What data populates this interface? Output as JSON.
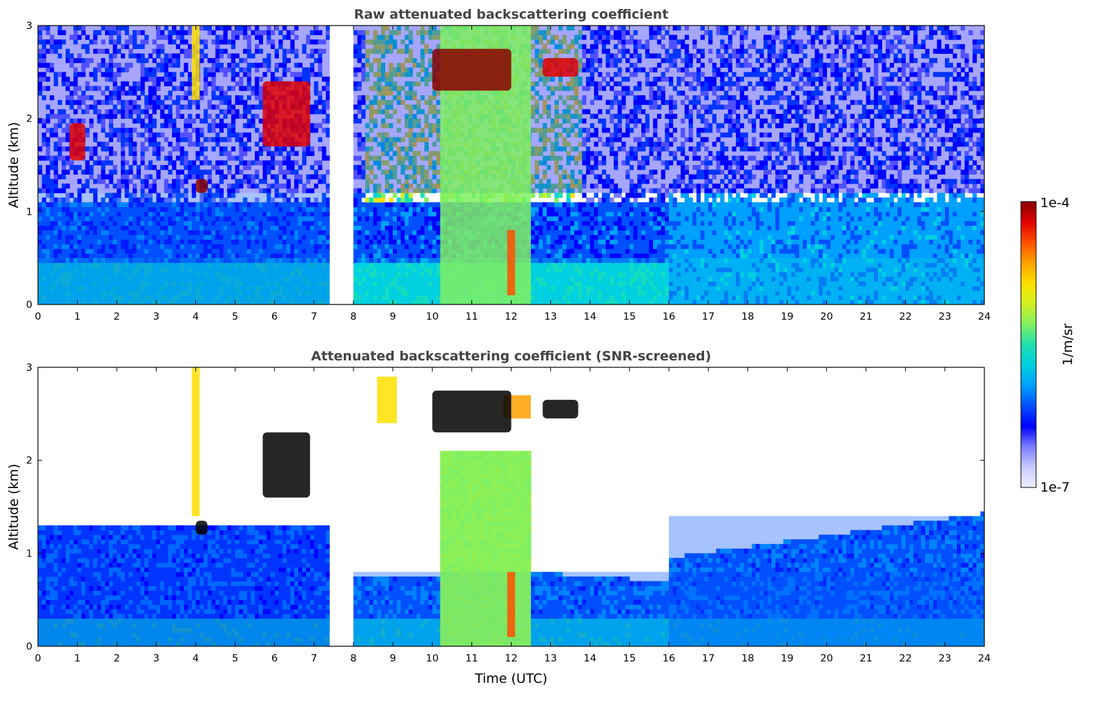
{
  "chart_data": [
    {
      "type": "heatmap",
      "title": "Raw attenuated backscattering coefficient",
      "xlabel": "",
      "ylabel": "Altitude (km)",
      "xlim": [
        0,
        24
      ],
      "ylim": [
        0,
        3
      ],
      "x_ticks": [
        "0",
        "1",
        "2",
        "3",
        "4",
        "5",
        "6",
        "7",
        "8",
        "9",
        "10",
        "11",
        "12",
        "13",
        "14",
        "15",
        "16",
        "17",
        "18",
        "19",
        "20",
        "21",
        "22",
        "23",
        "24"
      ],
      "y_ticks": [
        "0",
        "1",
        "2",
        "3"
      ],
      "data_gap_hours": [
        7.4,
        8.0
      ],
      "scale": "log",
      "regions": [
        {
          "kind": "surface_layer",
          "x": [
            0,
            24
          ],
          "y": [
            0,
            0.5
          ],
          "level": 0.45
        },
        {
          "kind": "boundary_layer",
          "x": [
            0,
            7.4
          ],
          "y": [
            0,
            1.2
          ],
          "level": 0.3
        },
        {
          "kind": "noise_high_altitude",
          "x": [
            0,
            24
          ],
          "y": [
            1.2,
            3
          ],
          "level": 0.2
        },
        {
          "kind": "aerosol_column",
          "x": [
            10.2,
            12.5
          ],
          "y": [
            0,
            3
          ],
          "level": 0.6
        },
        {
          "kind": "cloud_layer",
          "x": [
            10.0,
            12.0
          ],
          "y": [
            2.3,
            2.75
          ],
          "level": 1.0
        },
        {
          "kind": "cloud_layer",
          "x": [
            12.8,
            13.7
          ],
          "y": [
            2.45,
            2.65
          ],
          "level": 0.95
        },
        {
          "kind": "cloud_layer",
          "x": [
            0.8,
            1.2
          ],
          "y": [
            1.55,
            1.95
          ],
          "level": 0.95
        },
        {
          "kind": "cloud_layer",
          "x": [
            4.0,
            4.3
          ],
          "y": [
            1.2,
            1.35
          ],
          "level": 1.0
        },
        {
          "kind": "cloud_layer",
          "x": [
            5.7,
            6.9
          ],
          "y": [
            1.7,
            2.4
          ],
          "level": 0.95
        },
        {
          "kind": "plume",
          "x": [
            3.9,
            4.1
          ],
          "y": [
            2.2,
            3.0
          ],
          "level": 0.7
        },
        {
          "kind": "strong_return",
          "x": [
            11.9,
            12.1
          ],
          "y": [
            0.1,
            0.8
          ],
          "level": 0.85
        }
      ]
    },
    {
      "type": "heatmap",
      "title": "Attenuated backscattering coefficient (SNR-screened)",
      "xlabel": "Time (UTC)",
      "ylabel": "Altitude (km)",
      "xlim": [
        0,
        24
      ],
      "ylim": [
        0,
        3
      ],
      "x_ticks": [
        "0",
        "1",
        "2",
        "3",
        "4",
        "5",
        "6",
        "7",
        "8",
        "9",
        "10",
        "11",
        "12",
        "13",
        "14",
        "15",
        "16",
        "17",
        "18",
        "19",
        "20",
        "21",
        "22",
        "23",
        "24"
      ],
      "y_ticks": [
        "0",
        "1",
        "2",
        "3"
      ],
      "data_gap_hours": [
        7.4,
        8.0
      ],
      "scale": "log",
      "regions": [
        {
          "kind": "boundary_layer",
          "x": [
            0,
            7.4
          ],
          "y": [
            0,
            1.3
          ],
          "level": 0.25
        },
        {
          "kind": "boundary_layer",
          "x": [
            8.0,
            24
          ],
          "y": [
            0,
            0.8
          ],
          "level": 0.3
        },
        {
          "kind": "boundary_layer",
          "x": [
            16,
            24
          ],
          "y": [
            0,
            1.4
          ],
          "level": 0.3
        },
        {
          "kind": "aerosol_column",
          "x": [
            10.2,
            12.5
          ],
          "y": [
            0,
            2.1
          ],
          "level": 0.6
        },
        {
          "kind": "aerosol_layer",
          "x": [
            8.6,
            9.1
          ],
          "y": [
            2.4,
            2.9
          ],
          "level": 0.75
        },
        {
          "kind": "aerosol_layer",
          "x": [
            11.8,
            12.5
          ],
          "y": [
            2.45,
            2.7
          ],
          "level": 0.8
        },
        {
          "kind": "cloud_layer",
          "x": [
            10.0,
            12.0
          ],
          "y": [
            2.3,
            2.75
          ],
          "level": 1.0
        },
        {
          "kind": "cloud_layer",
          "x": [
            12.8,
            13.7
          ],
          "y": [
            2.45,
            2.65
          ],
          "level": 1.0
        },
        {
          "kind": "cloud_layer",
          "x": [
            5.7,
            6.9
          ],
          "y": [
            1.6,
            2.3
          ],
          "level": 1.0
        },
        {
          "kind": "cloud_layer",
          "x": [
            4.0,
            4.3
          ],
          "y": [
            1.2,
            1.35
          ],
          "level": 1.0
        },
        {
          "kind": "plume",
          "x": [
            3.9,
            4.1
          ],
          "y": [
            1.4,
            3.0
          ],
          "level": 0.7
        },
        {
          "kind": "strong_return",
          "x": [
            11.9,
            12.1
          ],
          "y": [
            0.1,
            0.8
          ],
          "level": 0.85
        }
      ]
    }
  ],
  "colorbar": {
    "label": "1/m/sr",
    "max_label": "1e-4",
    "min_label": "1e-7",
    "colors": [
      "#eeeeff",
      "#c9c9ff",
      "#7b7bff",
      "#0000ff",
      "#0050ff",
      "#00a0ff",
      "#00d0e0",
      "#20e0b0",
      "#80f060",
      "#d0f020",
      "#ffe000",
      "#ffa000",
      "#ff5000",
      "#e00000",
      "#8b0000"
    ]
  }
}
